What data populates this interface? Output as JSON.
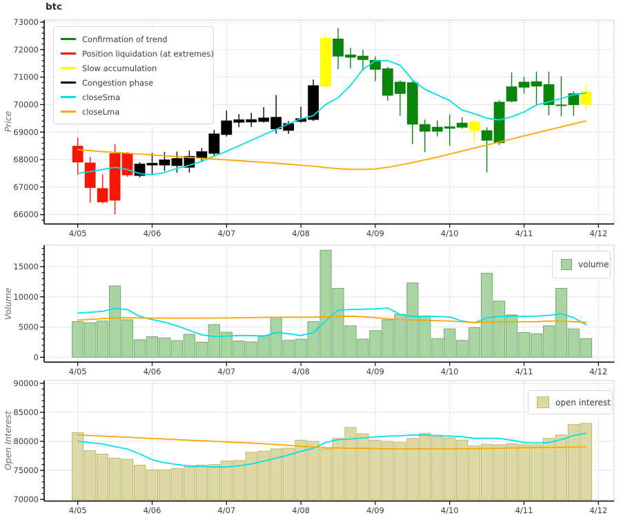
{
  "title": "btc",
  "axes": {
    "price_label": "Price",
    "volume_label": "Volume",
    "oi_label": "Open Interest"
  },
  "x_tick_labels": [
    "4/05",
    "4/06",
    "4/07",
    "4/08",
    "4/09",
    "4/10",
    "4/11",
    "4/12"
  ],
  "price_legend": [
    {
      "label": "Confirmation of trend",
      "color": "#0a840a"
    },
    {
      "label": "Position liquidation (at extremes)",
      "color": "#f81505"
    },
    {
      "label": "Slow accumulation",
      "color": "#ffff00"
    },
    {
      "label": "Congestion phase",
      "color": "#000000"
    },
    {
      "label": "closeSma",
      "color": "#00e0e6"
    },
    {
      "label": "closeLma",
      "color": "#ffa500"
    }
  ],
  "volume_legend": {
    "label": "volume"
  },
  "oi_legend": {
    "label": "open interest"
  },
  "chart_data": [
    {
      "type": "candlestick",
      "title": "btc",
      "ylabel": "Price",
      "ylim": [
        65650,
        73100
      ],
      "bars_per_day": 6,
      "grid": true,
      "y_ticks": [
        66000,
        67000,
        68000,
        69000,
        70000,
        71000,
        72000,
        73000
      ],
      "phase_colors": {
        "trend": "#0a840a",
        "liquidation": "#f81505",
        "accumulation": "#ffff00",
        "congestion": "#000000"
      },
      "phase": [
        "liquidation",
        "liquidation",
        "liquidation",
        "liquidation",
        "liquidation",
        "congestion",
        "congestion",
        "congestion",
        "congestion",
        "congestion",
        "congestion",
        "congestion",
        "congestion",
        "congestion",
        "congestion",
        "congestion",
        "congestion",
        "congestion",
        "congestion",
        "congestion",
        "accumulation",
        "trend",
        "trend",
        "trend",
        "trend",
        "trend",
        "trend",
        "trend",
        "trend",
        "trend",
        "trend",
        "trend",
        "accumulation",
        "trend",
        "trend",
        "trend",
        "trend",
        "trend",
        "trend",
        "trend",
        "trend",
        "accumulation"
      ],
      "ohlc": [
        [
          68500,
          68800,
          67450,
          67900
        ],
        [
          67890,
          68100,
          66430,
          66970
        ],
        [
          66960,
          67460,
          66410,
          66450
        ],
        [
          66510,
          68565,
          66010,
          68230
        ],
        [
          68230,
          68270,
          67370,
          67430
        ],
        [
          67410,
          67910,
          67350,
          67850
        ],
        [
          67880,
          68240,
          67460,
          67790
        ],
        [
          67790,
          68280,
          67580,
          68000
        ],
        [
          68050,
          68290,
          67520,
          67770
        ],
        [
          67710,
          68330,
          67520,
          68130
        ],
        [
          68060,
          68420,
          67920,
          68300
        ],
        [
          68215,
          69085,
          68130,
          68945
        ],
        [
          68900,
          69780,
          68840,
          69420
        ],
        [
          69460,
          69655,
          69175,
          69345
        ],
        [
          69355,
          69700,
          69190,
          69465
        ],
        [
          69375,
          69905,
          69345,
          69525
        ],
        [
          69550,
          70350,
          68940,
          69105
        ],
        [
          69320,
          69400,
          68940,
          69050
        ],
        [
          69375,
          69920,
          69345,
          69500
        ],
        [
          69445,
          70910,
          69400,
          70700
        ],
        [
          70660,
          72590,
          70620,
          72420
        ],
        [
          72400,
          72780,
          71290,
          71750
        ],
        [
          71818,
          72060,
          71315,
          71710
        ],
        [
          71775,
          72000,
          71230,
          71625
        ],
        [
          71625,
          71750,
          70855,
          71270
        ],
        [
          71315,
          71375,
          70140,
          70325
        ],
        [
          70830,
          70885,
          69595,
          70390
        ],
        [
          70810,
          70870,
          68565,
          69275
        ],
        [
          69290,
          69455,
          68270,
          69020
        ],
        [
          69020,
          69425,
          68840,
          69190
        ],
        [
          69205,
          69635,
          68505,
          69125
        ],
        [
          69165,
          69545,
          69125,
          69340
        ],
        [
          69375,
          69455,
          68605,
          69040
        ],
        [
          69065,
          69175,
          67535,
          68690
        ],
        [
          68600,
          70160,
          68530,
          70100
        ],
        [
          70115,
          71165,
          70075,
          70660
        ],
        [
          70620,
          71010,
          70400,
          70830
        ],
        [
          70845,
          71205,
          69960,
          70660
        ],
        [
          70740,
          71200,
          69610,
          69985
        ],
        [
          70000,
          71030,
          69570,
          69950
        ],
        [
          69980,
          70480,
          69590,
          70410
        ],
        [
          70000,
          70740,
          69820,
          70480
        ]
      ],
      "series": [
        {
          "name": "closeSma",
          "color": "#00e0e6",
          "values": [
            67500,
            67560,
            67640,
            67720,
            67640,
            67490,
            67450,
            67530,
            67680,
            67790,
            67940,
            68125,
            68300,
            68500,
            68700,
            68900,
            69100,
            69300,
            69480,
            69600,
            70000,
            70250,
            70700,
            71280,
            71590,
            71600,
            71430,
            70900,
            70550,
            70350,
            70150,
            69800,
            69670,
            69500,
            69440,
            69560,
            69730,
            69985,
            70100,
            70220,
            70360,
            70420
          ]
        },
        {
          "name": "closeLma",
          "color": "#ffa500",
          "values": [
            68360,
            68325,
            68290,
            68260,
            68230,
            68200,
            68170,
            68140,
            68110,
            68080,
            68050,
            68020,
            67990,
            67960,
            67930,
            67900,
            67870,
            67830,
            67790,
            67760,
            67710,
            67670,
            67645,
            67640,
            67660,
            67720,
            67800,
            67890,
            67990,
            68090,
            68200,
            68310,
            68420,
            68530,
            68640,
            68750,
            68860,
            68970,
            69080,
            69190,
            69300,
            69400
          ]
        }
      ]
    },
    {
      "type": "bar",
      "ylabel": "Volume",
      "legend": "volume",
      "ylim": [
        -800,
        18540
      ],
      "grid": true,
      "y_ticks": [
        0,
        5000,
        10000,
        15000
      ],
      "bar_fill": "#a8d5a2",
      "bar_edge": "#74a874",
      "values": [
        5900,
        5700,
        6000,
        11800,
        6200,
        2900,
        3400,
        3200,
        2750,
        3800,
        2500,
        5400,
        4150,
        2700,
        2550,
        3600,
        6600,
        2800,
        3000,
        5900,
        17700,
        11400,
        5200,
        3000,
        4400,
        6200,
        7100,
        12300,
        6800,
        3100,
        4700,
        2800,
        4900,
        13900,
        9300,
        7000,
        4100,
        3900,
        5200,
        11400,
        4700,
        3100
      ],
      "series": [
        {
          "name": "sma",
          "color": "#00e0e6",
          "values": [
            7300,
            7450,
            7600,
            8050,
            7900,
            6750,
            6250,
            5800,
            5200,
            4450,
            3700,
            3450,
            3500,
            3600,
            3600,
            3500,
            4100,
            3900,
            3600,
            4050,
            6000,
            7800,
            7900,
            7950,
            8000,
            8150,
            7100,
            6750,
            6800,
            6750,
            6670,
            6000,
            5700,
            6550,
            6750,
            6860,
            6750,
            6820,
            6930,
            7200,
            6550,
            5400
          ]
        },
        {
          "name": "lma",
          "color": "#ffa500",
          "values": [
            6150,
            6270,
            6400,
            6500,
            6520,
            6500,
            6490,
            6480,
            6475,
            6475,
            6480,
            6490,
            6500,
            6520,
            6560,
            6600,
            6620,
            6630,
            6630,
            6640,
            6700,
            6780,
            6800,
            6700,
            6555,
            6365,
            6250,
            6175,
            6100,
            6060,
            5985,
            5870,
            5720,
            5790,
            5870,
            5880,
            5870,
            5880,
            5985,
            5985,
            5880,
            5790
          ]
        }
      ]
    },
    {
      "type": "bar",
      "ylabel": "Open Interest",
      "legend": "open interest",
      "ylim": [
        69520,
        90480
      ],
      "grid": true,
      "y_ticks": [
        70000,
        75000,
        80000,
        85000,
        90000
      ],
      "bar_fill": "#dcd9a4",
      "bar_edge": "#bdb76b",
      "values": [
        81500,
        78400,
        77800,
        77100,
        76900,
        75900,
        75100,
        75100,
        75300,
        75600,
        75900,
        76000,
        76600,
        76700,
        78100,
        78300,
        78700,
        78800,
        80200,
        80000,
        78700,
        80500,
        82400,
        81300,
        80200,
        80000,
        79800,
        80500,
        81400,
        80800,
        80600,
        80200,
        79200,
        79500,
        79400,
        79600,
        79400,
        79400,
        80500,
        81100,
        82900,
        83100
      ],
      "series": [
        {
          "name": "sma",
          "color": "#00e0e6",
          "values": [
            80000,
            79760,
            79560,
            79080,
            78690,
            77820,
            76830,
            76310,
            76000,
            75750,
            75670,
            75560,
            75590,
            75790,
            76110,
            76590,
            77100,
            77660,
            78290,
            78800,
            79800,
            80300,
            80400,
            80600,
            80750,
            80900,
            80950,
            81100,
            81100,
            81000,
            80900,
            80800,
            80500,
            80550,
            80500,
            80200,
            79800,
            79700,
            79800,
            80300,
            81000,
            81400
          ]
        },
        {
          "name": "lma",
          "color": "#ffa500",
          "values": [
            81100,
            81000,
            80900,
            80800,
            80700,
            80600,
            80500,
            80400,
            80300,
            80200,
            80100,
            80000,
            79900,
            79800,
            79700,
            79580,
            79450,
            79300,
            79150,
            79050,
            78900,
            78850,
            78800,
            78780,
            78750,
            78720,
            78700,
            78700,
            78700,
            78700,
            78700,
            78710,
            78730,
            78760,
            78800,
            78850,
            78900,
            78930,
            78950,
            78980,
            79000,
            79010
          ]
        }
      ]
    }
  ]
}
